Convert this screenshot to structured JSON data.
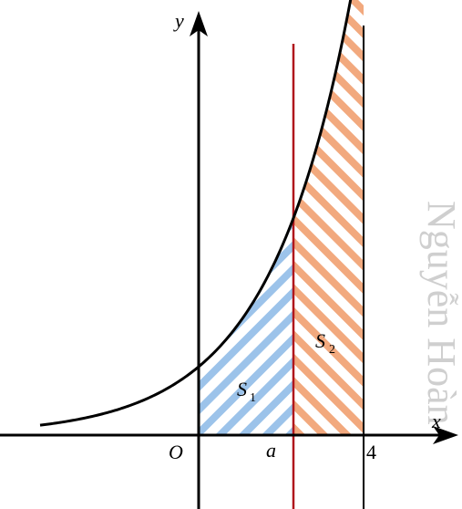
{
  "labels": {
    "y_axis": "y",
    "x_axis": "x",
    "origin": "O",
    "a": "a",
    "four": "4",
    "s1_main": "S",
    "s1_sub": "1",
    "s2_main": "S",
    "s2_sub": "2"
  },
  "watermark": "Nguyễn Hoàn",
  "colors": {
    "axis": "#000000",
    "curve": "#000000",
    "line_a": "#b0161c",
    "line_4": "#000000",
    "s1_hatch": "#9cc3ea",
    "s2_hatch": "#f2a97e"
  }
}
